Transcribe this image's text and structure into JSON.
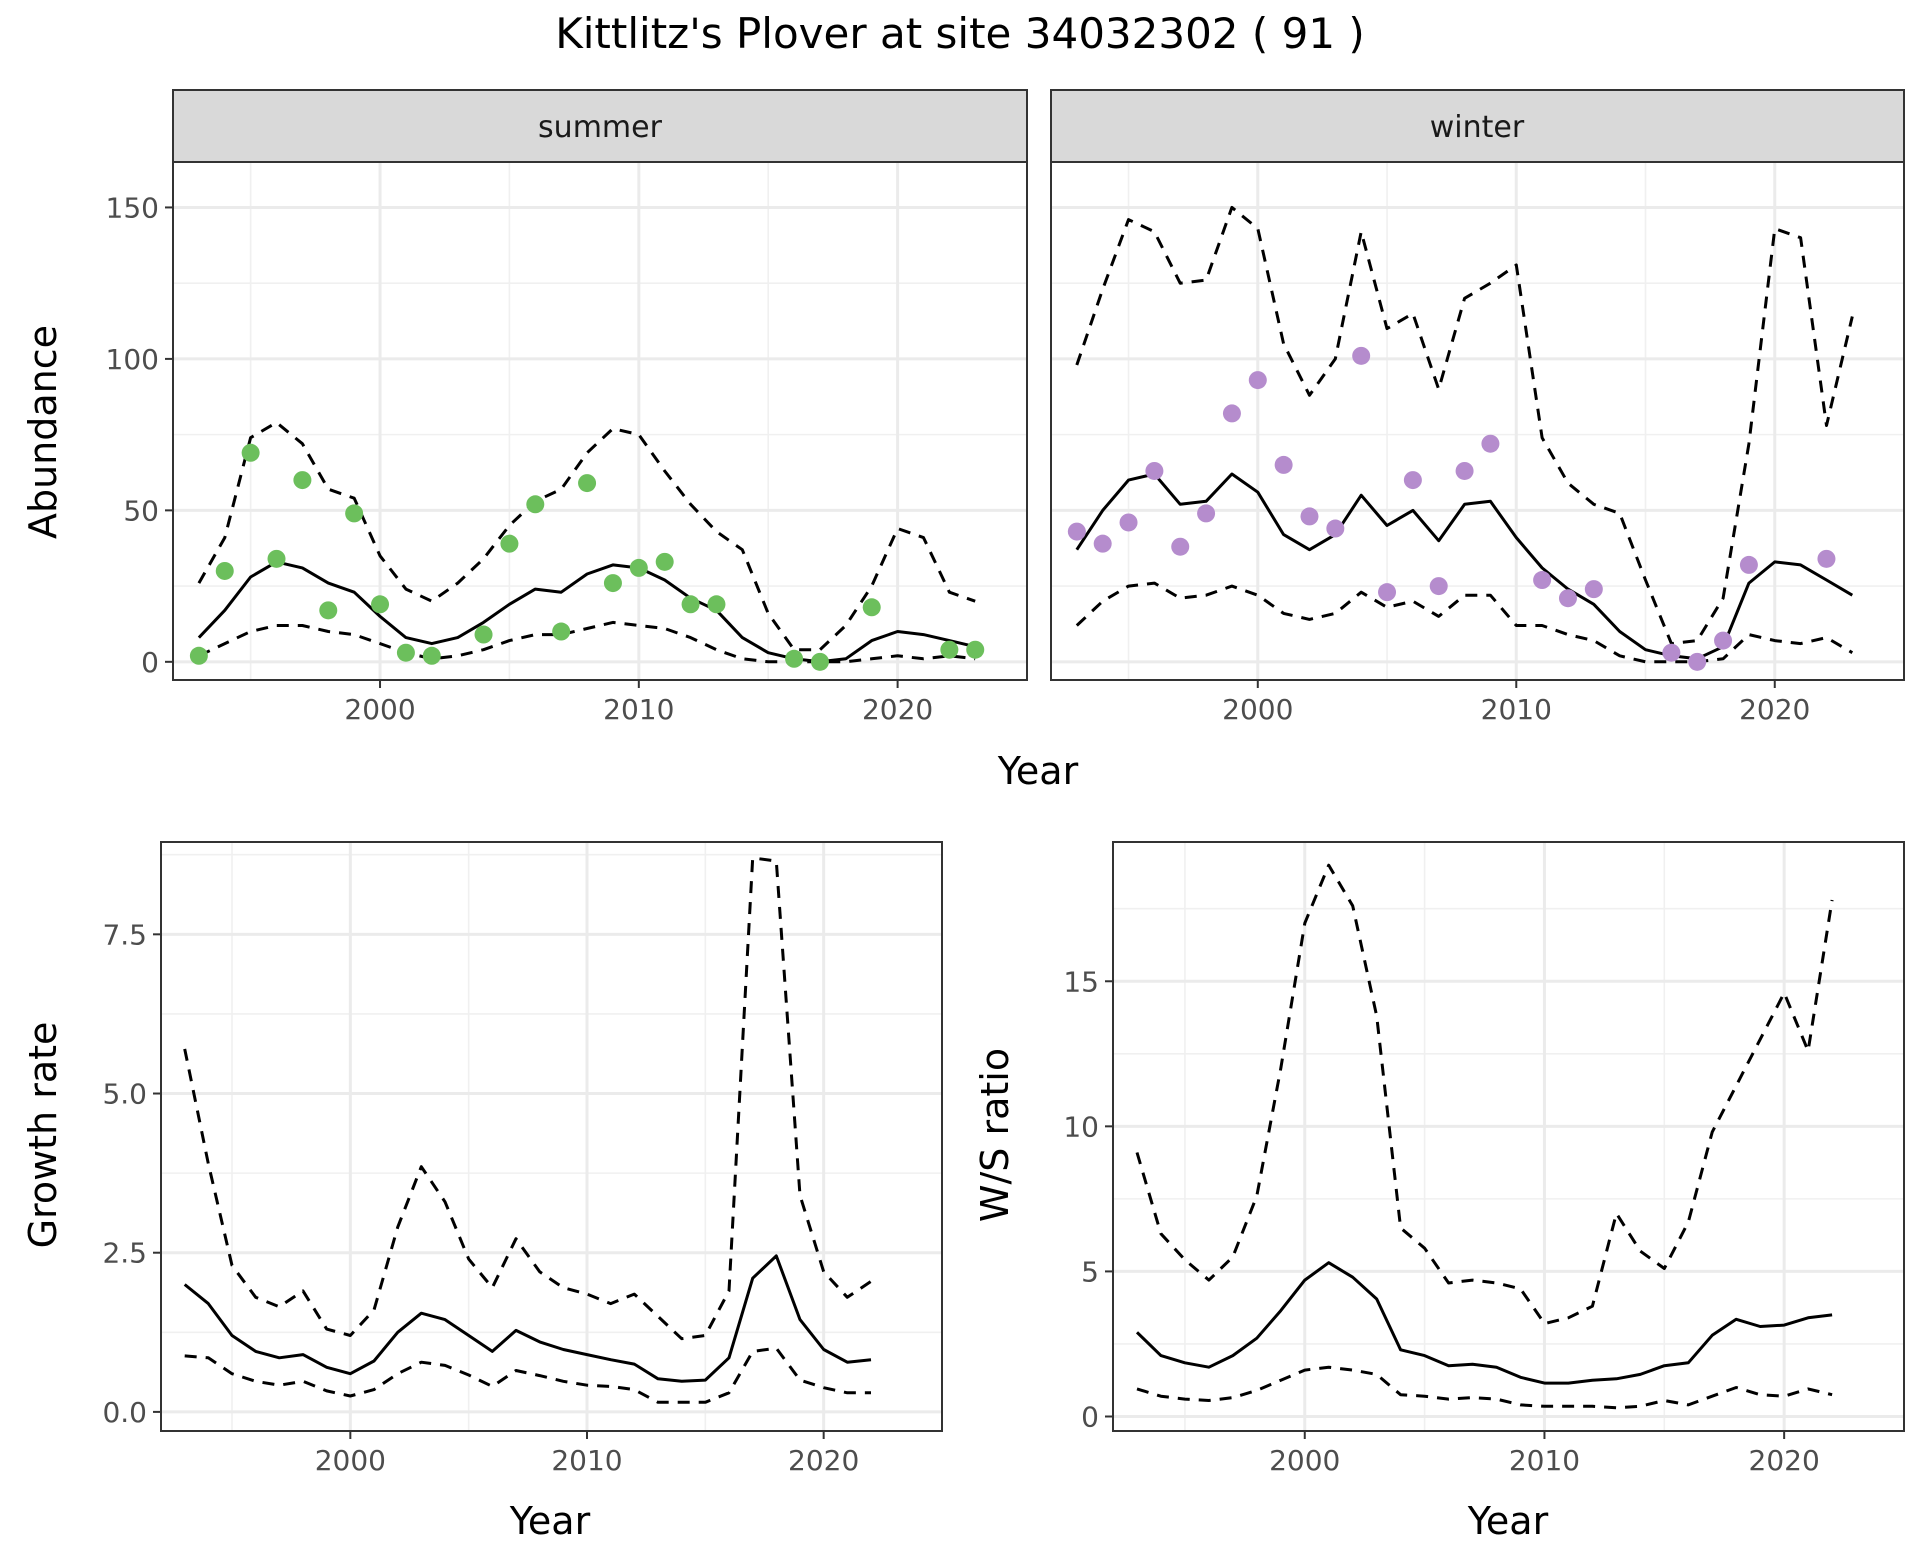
{
  "title": "Kittlitz's Plover at site 34032302 ( 91 )",
  "chart_data": [
    {
      "id": "summer",
      "type": "line",
      "facet_label": "summer",
      "xlabel": "Year",
      "ylabel": "Abundance",
      "xlim": [
        1992,
        2025
      ],
      "ylim": [
        -6,
        165
      ],
      "xticks": [
        2000,
        2010,
        2020
      ],
      "yticks": [
        0,
        50,
        100,
        150
      ],
      "grid": true,
      "point_color": "#6cbf5c",
      "x": [
        1993,
        1994,
        1995,
        1996,
        1997,
        1998,
        1999,
        2000,
        2001,
        2002,
        2003,
        2004,
        2005,
        2006,
        2007,
        2008,
        2009,
        2010,
        2011,
        2012,
        2013,
        2014,
        2015,
        2016,
        2017,
        2018,
        2019,
        2020,
        2021,
        2022,
        2023
      ],
      "series": [
        {
          "style": "solid",
          "values": [
            8,
            17,
            28,
            33,
            31,
            26,
            23,
            15,
            8,
            6,
            8,
            13,
            19,
            24,
            23,
            29,
            32,
            31,
            27,
            21,
            17,
            8,
            3,
            1,
            0,
            1,
            7,
            10,
            9,
            7,
            5
          ]
        },
        {
          "style": "dashed",
          "values": [
            26,
            41,
            74,
            79,
            72,
            57,
            54,
            35,
            24,
            20,
            26,
            34,
            45,
            53,
            57,
            69,
            77,
            75,
            63,
            52,
            43,
            37,
            16,
            4,
            4,
            12,
            25,
            44,
            41,
            23,
            20
          ]
        },
        {
          "style": "dashed",
          "values": [
            2,
            6,
            10,
            12,
            12,
            10,
            9,
            6,
            3,
            1,
            2,
            4,
            7,
            9,
            9,
            11,
            13,
            12,
            11,
            8,
            4,
            1,
            0,
            0,
            0,
            0,
            1,
            2,
            1,
            2,
            1
          ]
        }
      ],
      "points": {
        "x": [
          1993,
          1994,
          1995,
          1996,
          1997,
          1998,
          1999,
          2000,
          2001,
          2002,
          2004,
          2005,
          2006,
          2007,
          2008,
          2009,
          2010,
          2011,
          2012,
          2013,
          2016,
          2017,
          2019,
          2022,
          2023
        ],
        "y": [
          2,
          30,
          69,
          34,
          60,
          17,
          49,
          19,
          3,
          2,
          9,
          39,
          52,
          10,
          59,
          26,
          31,
          33,
          19,
          19,
          1,
          0,
          18,
          4,
          4
        ]
      }
    },
    {
      "id": "winter",
      "type": "line",
      "facet_label": "winter",
      "xlabel": "Year",
      "ylabel": "Abundance",
      "xlim": [
        1992,
        2025
      ],
      "ylim": [
        -6,
        165
      ],
      "xticks": [
        2000,
        2010,
        2020
      ],
      "yticks": [
        0,
        50,
        100,
        150
      ],
      "grid": true,
      "point_color": "#b58ccd",
      "x": [
        1993,
        1994,
        1995,
        1996,
        1997,
        1998,
        1999,
        2000,
        2001,
        2002,
        2003,
        2004,
        2005,
        2006,
        2007,
        2008,
        2009,
        2010,
        2011,
        2012,
        2013,
        2014,
        2015,
        2016,
        2017,
        2018,
        2019,
        2020,
        2021,
        2022,
        2023
      ],
      "series": [
        {
          "style": "solid",
          "values": [
            37,
            50,
            60,
            62,
            52,
            53,
            62,
            56,
            42,
            37,
            42,
            55,
            45,
            50,
            40,
            52,
            53,
            41,
            31,
            24,
            19,
            10,
            4,
            2,
            1,
            5,
            26,
            33,
            32,
            27,
            22
          ]
        },
        {
          "style": "dashed",
          "values": [
            98,
            123,
            146,
            142,
            125,
            126,
            150,
            143,
            105,
            88,
            100,
            142,
            110,
            115,
            90,
            120,
            125,
            131,
            74,
            59,
            52,
            49,
            27,
            6,
            7,
            21,
            72,
            143,
            140,
            78,
            114
          ]
        },
        {
          "style": "dashed",
          "values": [
            12,
            20,
            25,
            26,
            21,
            22,
            25,
            22,
            16,
            14,
            16,
            23,
            18,
            20,
            15,
            22,
            22,
            12,
            12,
            9,
            7,
            2,
            0,
            0,
            0,
            1,
            9,
            7,
            6,
            8,
            3
          ]
        }
      ],
      "points": {
        "x": [
          1993,
          1994,
          1995,
          1996,
          1997,
          1998,
          1999,
          2000,
          2001,
          2002,
          2003,
          2004,
          2005,
          2006,
          2007,
          2008,
          2009,
          2011,
          2012,
          2013,
          2016,
          2017,
          2018,
          2019,
          2022
        ],
        "y": [
          43,
          39,
          46,
          63,
          38,
          49,
          82,
          93,
          65,
          48,
          44,
          101,
          23,
          60,
          25,
          63,
          72,
          27,
          21,
          24,
          3,
          0,
          7,
          32,
          34
        ]
      }
    },
    {
      "id": "growth",
      "type": "line",
      "xlabel": "Year",
      "ylabel": "Growth rate",
      "xlim": [
        1992,
        2025
      ],
      "ylim": [
        -0.3,
        8.95
      ],
      "xticks": [
        2000,
        2010,
        2020
      ],
      "yticks": [
        0.0,
        2.5,
        5.0,
        7.5
      ],
      "ytick_labels": [
        "0.0",
        "2.5",
        "5.0",
        "7.5"
      ],
      "grid": true,
      "x": [
        1993,
        1994,
        1995,
        1996,
        1997,
        1998,
        1999,
        2000,
        2001,
        2002,
        2003,
        2004,
        2005,
        2006,
        2007,
        2008,
        2009,
        2010,
        2011,
        2012,
        2013,
        2014,
        2015,
        2016,
        2017,
        2018,
        2019,
        2020,
        2021,
        2022
      ],
      "series": [
        {
          "style": "solid",
          "values": [
            2.0,
            1.7,
            1.2,
            0.95,
            0.85,
            0.9,
            0.7,
            0.6,
            0.8,
            1.25,
            1.55,
            1.45,
            1.2,
            0.95,
            1.28,
            1.1,
            0.98,
            0.9,
            0.82,
            0.75,
            0.52,
            0.48,
            0.5,
            0.85,
            2.1,
            2.45,
            1.45,
            0.98,
            0.78,
            0.82
          ]
        },
        {
          "style": "dashed",
          "values": [
            5.7,
            3.9,
            2.3,
            1.8,
            1.65,
            1.9,
            1.3,
            1.2,
            1.6,
            2.9,
            3.85,
            3.3,
            2.4,
            1.95,
            2.72,
            2.2,
            1.95,
            1.85,
            1.7,
            1.85,
            1.5,
            1.15,
            1.2,
            1.9,
            8.7,
            8.65,
            3.4,
            2.2,
            1.8,
            2.05
          ]
        },
        {
          "style": "dashed",
          "values": [
            0.88,
            0.85,
            0.6,
            0.48,
            0.42,
            0.48,
            0.33,
            0.25,
            0.35,
            0.6,
            0.78,
            0.73,
            0.58,
            0.4,
            0.65,
            0.57,
            0.48,
            0.42,
            0.4,
            0.35,
            0.15,
            0.15,
            0.15,
            0.3,
            0.95,
            1.0,
            0.5,
            0.38,
            0.3,
            0.3
          ]
        }
      ]
    },
    {
      "id": "ws_ratio",
      "type": "line",
      "xlabel": "Year",
      "ylabel": "W/S ratio",
      "xlim": [
        1992,
        2025
      ],
      "ylim": [
        -0.5,
        19.8
      ],
      "xticks": [
        2000,
        2010,
        2020
      ],
      "yticks": [
        0,
        5,
        10,
        15
      ],
      "grid": true,
      "x": [
        1993,
        1994,
        1995,
        1996,
        1997,
        1998,
        1999,
        2000,
        2001,
        2002,
        2003,
        2004,
        2005,
        2006,
        2007,
        2008,
        2009,
        2010,
        2011,
        2012,
        2013,
        2014,
        2015,
        2016,
        2017,
        2018,
        2019,
        2020,
        2021,
        2022
      ],
      "series": [
        {
          "style": "solid",
          "values": [
            2.9,
            2.1,
            1.85,
            1.7,
            2.1,
            2.7,
            3.65,
            4.7,
            5.3,
            4.8,
            4.05,
            2.3,
            2.1,
            1.75,
            1.8,
            1.7,
            1.35,
            1.15,
            1.15,
            1.25,
            1.3,
            1.45,
            1.75,
            1.85,
            2.8,
            3.35,
            3.1,
            3.15,
            3.4,
            3.5
          ]
        },
        {
          "style": "dashed",
          "values": [
            9.1,
            6.3,
            5.4,
            4.7,
            5.5,
            7.6,
            12.0,
            17.0,
            19.0,
            17.6,
            13.8,
            6.5,
            5.8,
            4.6,
            4.7,
            4.6,
            4.4,
            3.2,
            3.4,
            3.8,
            7.0,
            5.7,
            5.1,
            6.7,
            9.8,
            11.4,
            13.0,
            14.6,
            12.6,
            17.8
          ]
        },
        {
          "style": "dashed",
          "values": [
            0.95,
            0.7,
            0.6,
            0.55,
            0.65,
            0.9,
            1.25,
            1.6,
            1.7,
            1.6,
            1.45,
            0.75,
            0.7,
            0.6,
            0.65,
            0.6,
            0.4,
            0.35,
            0.35,
            0.35,
            0.3,
            0.35,
            0.55,
            0.4,
            0.7,
            1.0,
            0.75,
            0.7,
            0.95,
            0.75
          ]
        }
      ]
    }
  ]
}
